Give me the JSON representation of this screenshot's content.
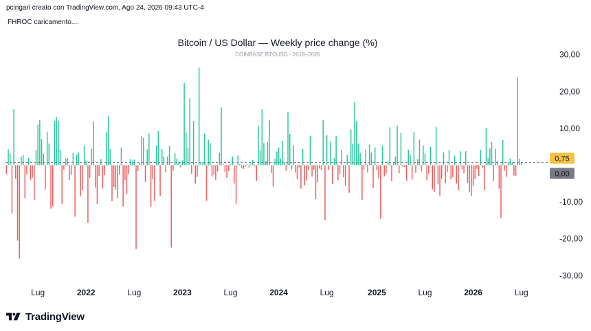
{
  "header": {
    "attribution": "pcingari creato con TradingView.com, Ago 24, 2026 09:43 UTC-4",
    "indicator_status": "FHROC caricamento...."
  },
  "footer": {
    "brand": "TradingView"
  },
  "colors": {
    "up": "#26c79a",
    "down": "#ef5c5c",
    "last_badge": "#f5c242",
    "zero_badge": "#787b86",
    "text": "#131722"
  },
  "chart_data": {
    "type": "bar",
    "title": "Bitcoin / US Dollar — Weekly price change (%)",
    "subtitle": "COINBASE:BTCUSD · 2018–2026",
    "y_axis": {
      "ticks": [
        30,
        20,
        10,
        0,
        -10,
        -20,
        -30
      ],
      "tick_labels": [
        "30,00",
        "20,00",
        "10,00",
        "0,00",
        "-10,00",
        "-20,00",
        "-30,00"
      ],
      "ylim": [
        -31,
        33
      ]
    },
    "x_axis": {
      "labels": [
        {
          "text": "Lug",
          "bold": false,
          "index": 17
        },
        {
          "text": "2022",
          "bold": true,
          "index": 43
        },
        {
          "text": "Lug",
          "bold": false,
          "index": 69
        },
        {
          "text": "2023",
          "bold": true,
          "index": 95
        },
        {
          "text": "Lug",
          "bold": false,
          "index": 121
        },
        {
          "text": "2024",
          "bold": true,
          "index": 147
        },
        {
          "text": "Lug",
          "bold": false,
          "index": 173
        },
        {
          "text": "2025",
          "bold": true,
          "index": 200
        },
        {
          "text": "Lug",
          "bold": false,
          "index": 226
        },
        {
          "text": "2026",
          "bold": true,
          "index": 252
        },
        {
          "text": "Lug",
          "bold": false,
          "index": 278
        }
      ]
    },
    "last_value": {
      "value": 0.75,
      "label": "0,75"
    },
    "zero_badge": {
      "value": 0,
      "label": "0,00"
    },
    "grid": false,
    "values": [
      -2.5,
      4.3,
      3.1,
      -13.1,
      15.2,
      -3.7,
      -20.5,
      -25.4,
      2.3,
      2.8,
      -9.0,
      -2.5,
      2.0,
      -4.1,
      -3.4,
      -9.4,
      4.1,
      11.0,
      12.3,
      7.1,
      3.1,
      -6.6,
      9.0,
      5.9,
      -11.8,
      -11.2,
      12.0,
      13.1,
      12.1,
      4.2,
      -10.6,
      -1.2,
      1.8,
      1.9,
      -4.0,
      -2.6,
      3.3,
      -14.0,
      2.9,
      3.4,
      -8.4,
      -6.8,
      5.3,
      1.3,
      -15.7,
      -3.5,
      4.4,
      11.9,
      -6.1,
      -10.6,
      -2.9,
      1.6,
      -6.3,
      -2.7,
      9.1,
      13.4,
      4.4,
      -9.8,
      -5.9,
      -6.6,
      -9.0,
      -2.6,
      4.8,
      -11.2,
      -4.0,
      -7.9,
      -2.4,
      1.6,
      1.1,
      1.5,
      -22.8,
      -1.6,
      0.6,
      8.0,
      7.4,
      -4.5,
      4.3,
      8.6,
      -11.3,
      -3.8,
      -9.8,
      5.4,
      9.3,
      -8.4,
      4.4,
      2.3,
      -2.0,
      2.4,
      5.2,
      -22.4,
      -1.5,
      3.2,
      1.8,
      0.9,
      -0.5,
      1.3,
      22.3,
      8.9,
      4.6,
      18.1,
      -2.3,
      12.0,
      -5.0,
      -3.2,
      26.5,
      0.6,
      0.8,
      8.6,
      -9.7,
      6.9,
      5.9,
      -3.1,
      -2.6,
      -4.0,
      -1.7,
      3.4,
      15.7,
      0.3,
      -1.8,
      -3.5,
      -1.6,
      0.3,
      2.3,
      -5.0,
      -10.6,
      2.6,
      0.3,
      -0.7,
      -1.0,
      -0.4,
      0.2,
      -0.6,
      0.6,
      1.4,
      -0.3,
      -4.3,
      10.7,
      4.1,
      15.2,
      6.0,
      1.1,
      6.3,
      12.3,
      -2.1,
      -5.8,
      1.7,
      3.7,
      4.8,
      1.8,
      6.6,
      0.8,
      -1.5,
      14.4,
      8.5,
      -1.1,
      5.4,
      -2.0,
      -3.8,
      -0.6,
      -6.4,
      4.4,
      -5.5,
      -4.1,
      -1.3,
      8.0,
      -3.1,
      -1.2,
      -9.2,
      -4.7,
      -0.9,
      -1.4,
      12.2,
      -14.9,
      8.1,
      -1.4,
      6.4,
      -5.1,
      1.9,
      7.9,
      -4.1,
      -2.4,
      4.0,
      -3.3,
      -5.6,
      2.8,
      -7.5,
      9.7,
      5.8,
      17.1,
      12.0,
      5.9,
      3.3,
      -9.4,
      -1.2,
      4.2,
      -2.0,
      5.6,
      3.4,
      -6.2,
      4.8,
      -1.4,
      -3.6,
      -14.6,
      5.4,
      -3.0,
      -2.3,
      1.1,
      10.3,
      -4.4,
      0.9,
      2.3,
      10.7,
      -2.2,
      8.8,
      -0.4,
      -0.5,
      -4.2,
      4.2,
      2.9,
      -3.9,
      9.0,
      -2.1,
      1.6,
      6.9,
      -1.7,
      5.4,
      3.1,
      -4.1,
      -2.3,
      5.0,
      -6.6,
      -7.3,
      10.4,
      -5.2,
      -8.3,
      -3.7,
      3.5,
      -5.0,
      -1.9,
      4.2,
      -3.9,
      -3.3,
      2.6,
      -5.0,
      -6.8,
      3.8,
      -1.1,
      -2.2,
      3.8,
      -4.8,
      -7.4,
      -8.4,
      -5.6,
      -3.8,
      -1.0,
      -2.9,
      4.2,
      -0.6,
      -6.8,
      10.1,
      2.0,
      4.5,
      6.3,
      -4.3,
      4.4,
      1.2,
      -6.4,
      -14.4,
      6.8,
      -1.5,
      -3.2,
      0.7,
      1.8,
      0.8,
      -2.8,
      -2.9,
      23.8,
      1.7,
      0.75
    ]
  }
}
